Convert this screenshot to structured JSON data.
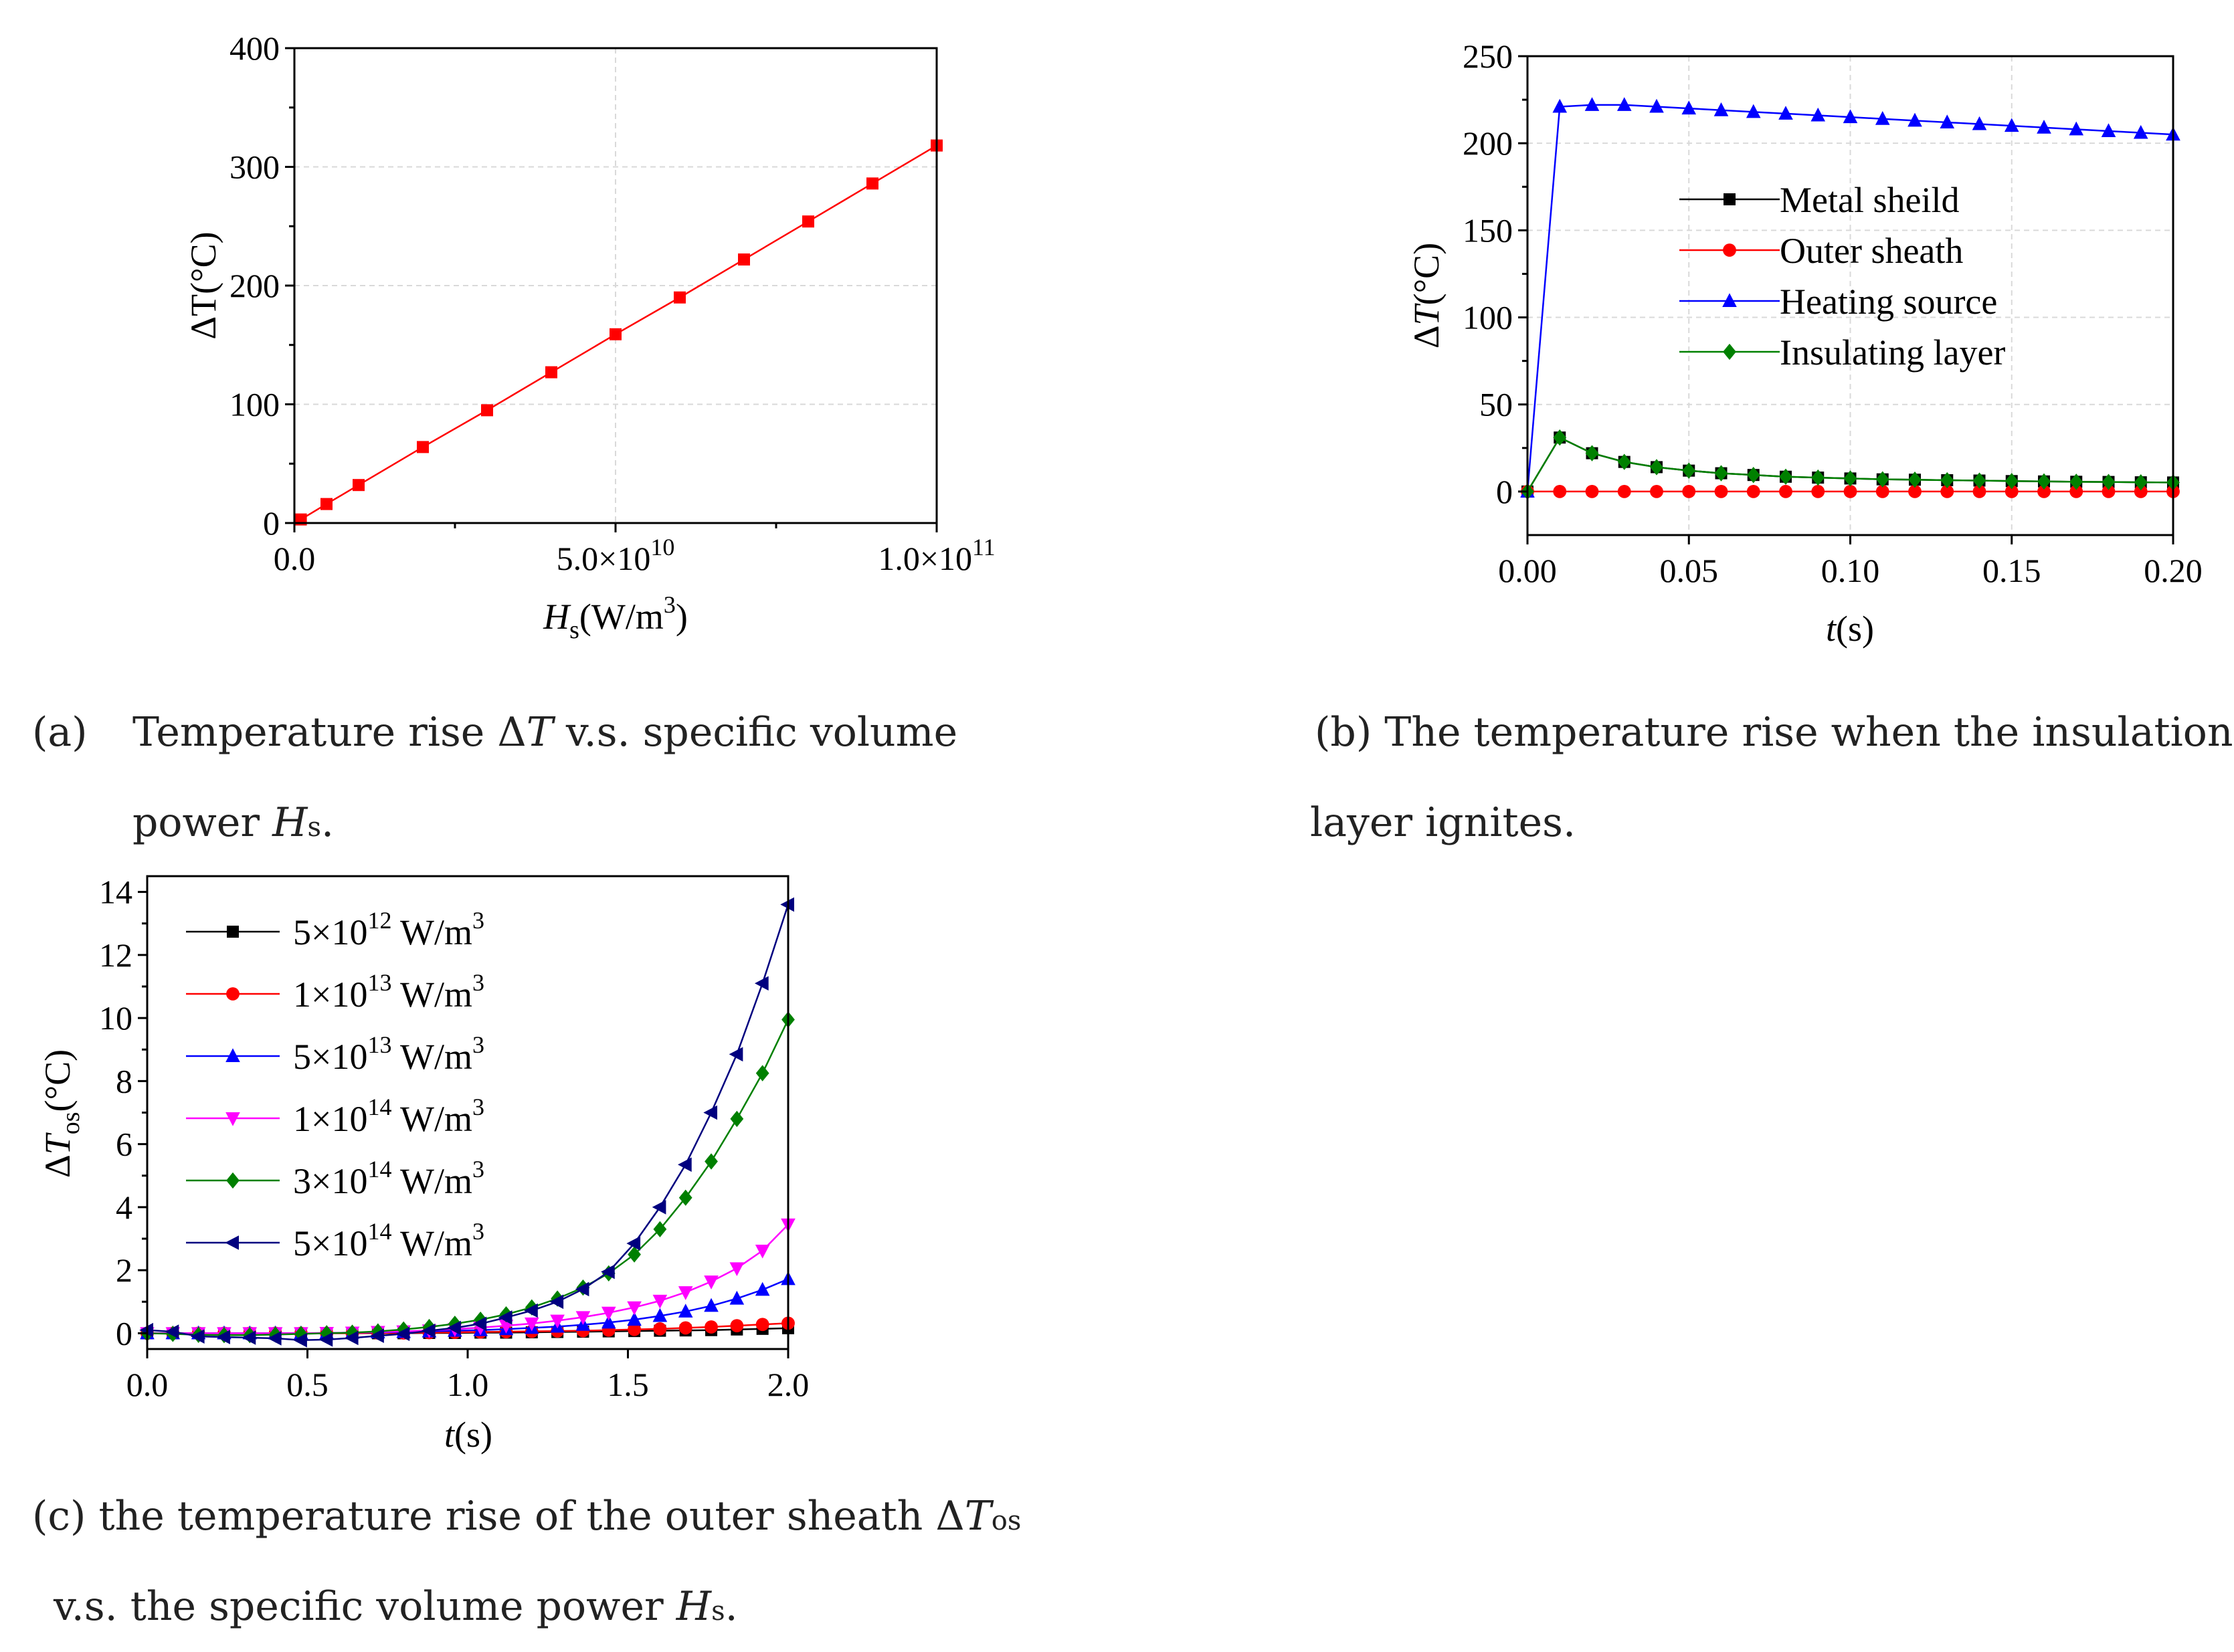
{
  "chart_data": [
    {
      "id": "a",
      "type": "line",
      "title": "",
      "xlabel": "H_s(W/m^3)",
      "ylabel": "ΔT(°C)",
      "xlim": [
        0,
        100000000000
      ],
      "ylim": [
        0,
        400
      ],
      "xticks": [
        {
          "v": 0,
          "label": "0.0"
        },
        {
          "v": 50000000000,
          "mant": "5.0×10",
          "exp": "10"
        },
        {
          "v": 100000000000,
          "mant": "1.0×10",
          "exp": "11"
        }
      ],
      "yticks": [
        0,
        100,
        200,
        300,
        400
      ],
      "series": [
        {
          "name": "ΔT",
          "color": "#ff0000",
          "marker": "square",
          "x": [
            1000000000,
            5000000000,
            10000000000,
            20000000000,
            30000000000,
            40000000000,
            50000000000,
            60000000000,
            70000000000,
            80000000000,
            90000000000,
            100000000000
          ],
          "y": [
            3,
            16,
            32,
            64,
            95,
            127,
            159,
            190,
            222,
            254,
            286,
            318
          ]
        }
      ]
    },
    {
      "id": "b",
      "type": "line",
      "title": "",
      "xlabel": "t(s)",
      "ylabel": "ΔT(°C)",
      "xlim": [
        0,
        0.2
      ],
      "ylim": [
        -25,
        250
      ],
      "xticks": [
        {
          "v": 0,
          "label": "0.00"
        },
        {
          "v": 0.05,
          "label": "0.05"
        },
        {
          "v": 0.1,
          "label": "0.10"
        },
        {
          "v": 0.15,
          "label": "0.15"
        },
        {
          "v": 0.2,
          "label": "0.20"
        }
      ],
      "yticks": [
        0,
        50,
        100,
        150,
        200,
        250
      ],
      "legend_position": "center-right",
      "series": [
        {
          "name": "Metal sheild",
          "color": "#000000",
          "marker": "square",
          "x": [
            0,
            0.01,
            0.02,
            0.03,
            0.04,
            0.05,
            0.06,
            0.07,
            0.08,
            0.09,
            0.1,
            0.11,
            0.12,
            0.13,
            0.14,
            0.15,
            0.16,
            0.17,
            0.18,
            0.19,
            0.2
          ],
          "y": [
            0,
            31,
            22,
            17,
            14,
            12,
            10.5,
            9.5,
            8.5,
            8,
            7.5,
            7,
            6.8,
            6.5,
            6.3,
            6,
            5.8,
            5.6,
            5.5,
            5.3,
            5.2
          ]
        },
        {
          "name": "Outer sheath",
          "color": "#ff0000",
          "marker": "circle",
          "x": [
            0,
            0.01,
            0.02,
            0.03,
            0.04,
            0.05,
            0.06,
            0.07,
            0.08,
            0.09,
            0.1,
            0.11,
            0.12,
            0.13,
            0.14,
            0.15,
            0.16,
            0.17,
            0.18,
            0.19,
            0.2
          ],
          "y": [
            0,
            0,
            0,
            0,
            0,
            0,
            0,
            0,
            0,
            0,
            0,
            0,
            0,
            0,
            0,
            0,
            0,
            0,
            0,
            0,
            0
          ]
        },
        {
          "name": "Heating source",
          "color": "#0000ff",
          "marker": "triangle-up",
          "x": [
            0,
            0.01,
            0.02,
            0.03,
            0.04,
            0.05,
            0.06,
            0.07,
            0.08,
            0.09,
            0.1,
            0.11,
            0.12,
            0.13,
            0.14,
            0.15,
            0.16,
            0.17,
            0.18,
            0.19,
            0.2
          ],
          "y": [
            0,
            221,
            222,
            222,
            221,
            220,
            219,
            218,
            217,
            216,
            215,
            214,
            213,
            212,
            211,
            210,
            209,
            208,
            207,
            206,
            205
          ]
        },
        {
          "name": "Insulating layer",
          "color": "#008000",
          "marker": "diamond",
          "x": [
            0,
            0.01,
            0.02,
            0.03,
            0.04,
            0.05,
            0.06,
            0.07,
            0.08,
            0.09,
            0.1,
            0.11,
            0.12,
            0.13,
            0.14,
            0.15,
            0.16,
            0.17,
            0.18,
            0.19,
            0.2
          ],
          "y": [
            0,
            31,
            22,
            17,
            14,
            12,
            10.5,
            9.5,
            8.5,
            8,
            7.5,
            7,
            6.8,
            6.5,
            6.3,
            6,
            5.8,
            5.6,
            5.5,
            5.3,
            5.2
          ]
        }
      ]
    },
    {
      "id": "c",
      "type": "line",
      "title": "",
      "xlabel": "t(s)",
      "ylabel": "ΔT_os(°C)",
      "xlim": [
        0,
        2
      ],
      "ylim": [
        -0.5,
        14.5
      ],
      "xticks": [
        {
          "v": 0,
          "label": "0.0"
        },
        {
          "v": 0.5,
          "label": "0.5"
        },
        {
          "v": 1,
          "label": "1.0"
        },
        {
          "v": 1.5,
          "label": "1.5"
        },
        {
          "v": 2,
          "label": "2.0"
        }
      ],
      "yticks": [
        0,
        2,
        4,
        6,
        8,
        10,
        12,
        14
      ],
      "legend_position": "top-left",
      "series": [
        {
          "name": "5×10",
          "exp": "12",
          "unit": " W/m",
          "unit_exp": "3",
          "color": "#000000",
          "marker": "square",
          "x": [
            0,
            0.08,
            0.16,
            0.24,
            0.32,
            0.4,
            0.48,
            0.56,
            0.64,
            0.72,
            0.8,
            0.88,
            0.96,
            1.04,
            1.12,
            1.2,
            1.28,
            1.36,
            1.44,
            1.52,
            1.6,
            1.68,
            1.76,
            1.84,
            1.92,
            2.0
          ],
          "y": [
            0,
            0,
            0,
            0,
            0,
            0,
            0,
            0,
            0,
            0,
            0,
            0.01,
            0.01,
            0.02,
            0.02,
            0.03,
            0.04,
            0.05,
            0.06,
            0.07,
            0.08,
            0.09,
            0.1,
            0.12,
            0.14,
            0.16
          ]
        },
        {
          "name": "1×10",
          "exp": "13",
          "unit": " W/m",
          "unit_exp": "3",
          "color": "#ff0000",
          "marker": "circle",
          "x": [
            0,
            0.08,
            0.16,
            0.24,
            0.32,
            0.4,
            0.48,
            0.56,
            0.64,
            0.72,
            0.8,
            0.88,
            0.96,
            1.04,
            1.12,
            1.2,
            1.28,
            1.36,
            1.44,
            1.52,
            1.6,
            1.68,
            1.76,
            1.84,
            1.92,
            2.0
          ],
          "y": [
            0,
            0,
            0,
            0,
            0,
            0,
            0,
            0,
            0,
            0.01,
            0.01,
            0.02,
            0.03,
            0.04,
            0.05,
            0.06,
            0.07,
            0.08,
            0.1,
            0.12,
            0.14,
            0.17,
            0.2,
            0.24,
            0.28,
            0.32
          ]
        },
        {
          "name": "5×10",
          "exp": "13",
          "unit": " W/m",
          "unit_exp": "3",
          "color": "#0000ff",
          "marker": "triangle-up",
          "x": [
            0,
            0.08,
            0.16,
            0.24,
            0.32,
            0.4,
            0.48,
            0.56,
            0.64,
            0.72,
            0.8,
            0.88,
            0.96,
            1.04,
            1.12,
            1.2,
            1.28,
            1.36,
            1.44,
            1.52,
            1.6,
            1.68,
            1.76,
            1.84,
            1.92,
            2.0
          ],
          "y": [
            0,
            0,
            0,
            0,
            0,
            0,
            0,
            0.01,
            0.02,
            0.03,
            0.04,
            0.06,
            0.08,
            0.1,
            0.13,
            0.17,
            0.21,
            0.27,
            0.34,
            0.43,
            0.55,
            0.69,
            0.87,
            1.1,
            1.38,
            1.72
          ]
        },
        {
          "name": "1×10",
          "exp": "14",
          "unit": " W/m",
          "unit_exp": "3",
          "color": "#ff00ff",
          "marker": "triangle-down",
          "x": [
            0,
            0.08,
            0.16,
            0.24,
            0.32,
            0.4,
            0.48,
            0.56,
            0.64,
            0.72,
            0.8,
            0.88,
            0.96,
            1.04,
            1.12,
            1.2,
            1.28,
            1.36,
            1.44,
            1.52,
            1.6,
            1.68,
            1.76,
            1.84,
            1.92,
            2.0
          ],
          "y": [
            0,
            0,
            0,
            0,
            0,
            0,
            0,
            0.01,
            0.02,
            0.04,
            0.06,
            0.09,
            0.13,
            0.18,
            0.24,
            0.31,
            0.4,
            0.51,
            0.65,
            0.82,
            1.03,
            1.3,
            1.64,
            2.06,
            2.62,
            3.45
          ]
        },
        {
          "name": "3×10",
          "exp": "14",
          "unit": " W/m",
          "unit_exp": "3",
          "color": "#008000",
          "marker": "diamond",
          "x": [
            0,
            0.08,
            0.16,
            0.24,
            0.32,
            0.4,
            0.48,
            0.56,
            0.64,
            0.72,
            0.8,
            0.88,
            0.96,
            1.04,
            1.12,
            1.2,
            1.28,
            1.36,
            1.44,
            1.52,
            1.6,
            1.68,
            1.76,
            1.84,
            1.92,
            2.0
          ],
          "y": [
            0,
            -0.02,
            -0.05,
            -0.06,
            -0.06,
            -0.04,
            -0.02,
            0,
            0.02,
            0.06,
            0.12,
            0.2,
            0.3,
            0.43,
            0.6,
            0.82,
            1.1,
            1.45,
            1.9,
            2.5,
            3.3,
            4.3,
            5.45,
            6.8,
            8.25,
            9.95
          ]
        },
        {
          "name": "5×10",
          "exp": "14",
          "unit": " W/m",
          "unit_exp": "3",
          "color": "#00007f",
          "marker": "triangle-left",
          "x": [
            0,
            0.08,
            0.16,
            0.24,
            0.32,
            0.4,
            0.48,
            0.56,
            0.64,
            0.72,
            0.8,
            0.88,
            0.96,
            1.04,
            1.12,
            1.2,
            1.28,
            1.36,
            1.44,
            1.52,
            1.6,
            1.68,
            1.76,
            1.84,
            1.92,
            2.0
          ],
          "y": [
            0.1,
            0.05,
            -0.1,
            -0.12,
            -0.14,
            -0.16,
            -0.22,
            -0.2,
            -0.15,
            -0.08,
            -0.02,
            0.08,
            0.17,
            0.3,
            0.5,
            0.72,
            1.0,
            1.4,
            1.95,
            2.85,
            4.0,
            5.35,
            7.0,
            8.85,
            11.1,
            13.6
          ]
        }
      ]
    }
  ],
  "captions": {
    "a_label": "(a)",
    "a_line1_pre": "Temperature rise Δ",
    "a_line1_var": "T",
    "a_line1_post": " v.s. specific volume",
    "a_line2_pre": "power ",
    "a_line2_var": "H",
    "a_line2_sub": "s",
    "a_line2_post": ".",
    "b_line1": "(b) The temperature rise when the insulation",
    "b_line2": "layer ignites.",
    "c_line1_pre": "(c) the temperature rise of the outer sheath Δ",
    "c_line1_var": "T",
    "c_line1_sub": "os",
    "c_line2_pre": "v.s. the specific volume power ",
    "c_line2_var": "H",
    "c_line2_sub": "s",
    "c_line2_post": "."
  }
}
